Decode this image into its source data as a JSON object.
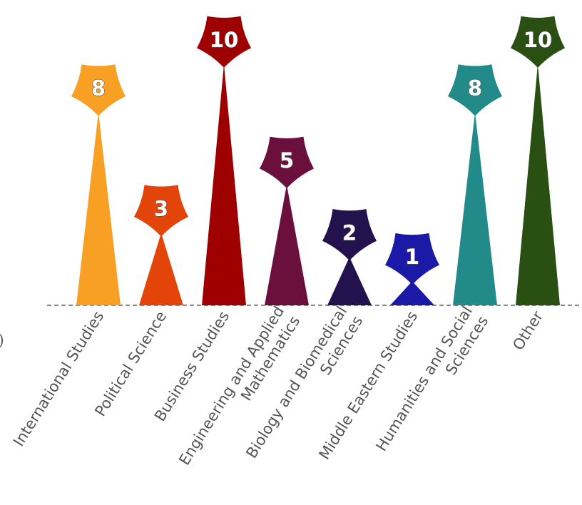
{
  "chart_data": {
    "type": "bar",
    "categories": [
      "International Studies",
      "Political Science",
      "Business Studies",
      "Engineering and Applied\nMathematics",
      "Biology and Biomedical\nSciences",
      "Middle Eastern Studies",
      "Humanities and Social\nSciences",
      "Other"
    ],
    "values": [
      8,
      3,
      10,
      5,
      2,
      1,
      8,
      10
    ],
    "colors": [
      "#f7a024",
      "#e3440a",
      "#9e0000",
      "#6b0f3d",
      "#23124d",
      "#1a1aa6",
      "#238a8a",
      "#2a4f12"
    ],
    "ylim": [
      0,
      10
    ],
    "grid": false,
    "legend": "none",
    "edge_label_fragment": ")"
  }
}
